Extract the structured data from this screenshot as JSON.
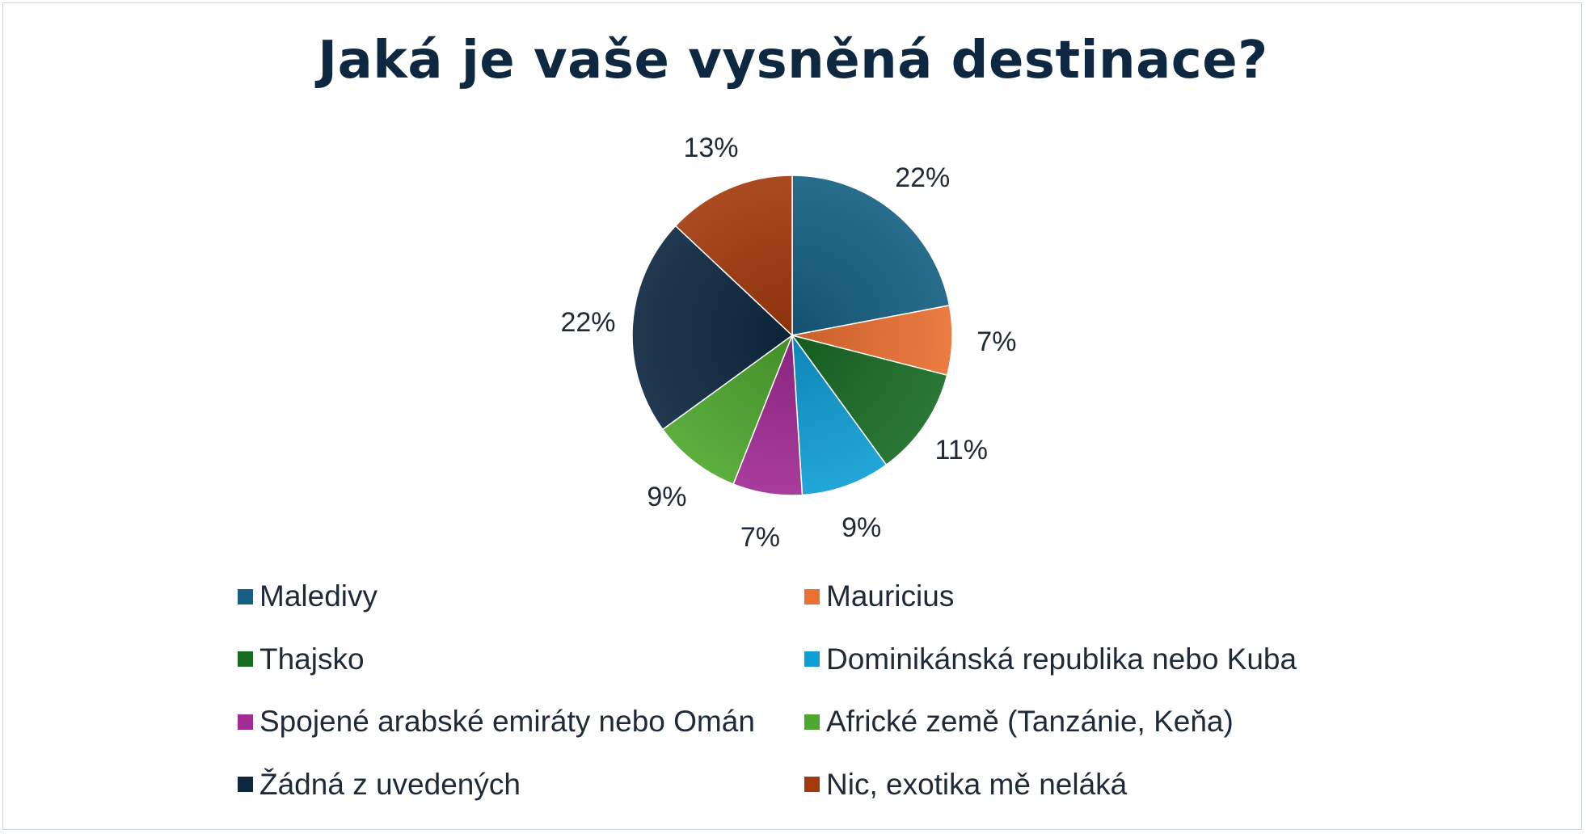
{
  "chart_data": {
    "type": "pie",
    "title": "Jaká je vaše vysněná destinace?",
    "categories": [
      "Maledivy",
      "Mauricius",
      "Thajsko",
      "Dominikánská republika nebo Kuba",
      "Spojené arabské emiráty nebo Omán",
      "Africké země (Tanzánie, Keňa)",
      "Žádná z uvedených",
      "Nic, exotika mě neláká"
    ],
    "values": [
      22,
      7,
      11,
      9,
      7,
      9,
      22,
      13
    ],
    "data_labels": [
      "22%",
      "7%",
      "11%",
      "9%",
      "7%",
      "9%",
      "22%",
      "13%"
    ],
    "colors": [
      "#156082",
      "#e97132",
      "#196b24",
      "#0f9ed5",
      "#a02b93",
      "#4ea72e",
      "#0e2841",
      "#a33a0e"
    ],
    "legend_position": "bottom"
  }
}
